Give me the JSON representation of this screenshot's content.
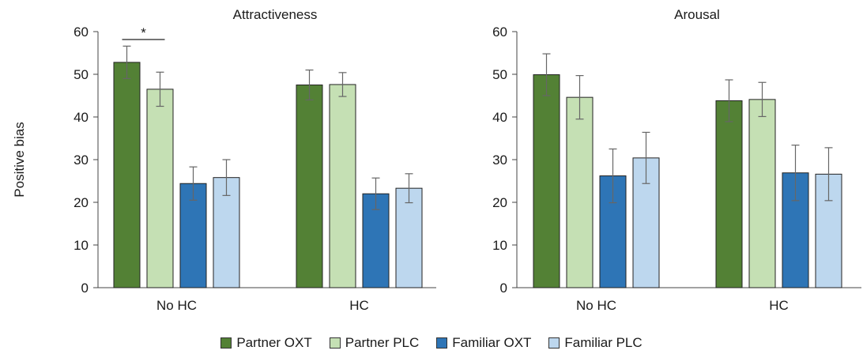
{
  "ylabel": "Positive bias",
  "legend": [
    {
      "name": "Partner OXT",
      "color": "#538135"
    },
    {
      "name": "Partner PLC",
      "color": "#c5e0b4"
    },
    {
      "name": "Familiar OXT",
      "color": "#2e75b6"
    },
    {
      "name": "Familiar PLC",
      "color": "#bdd7ee"
    }
  ],
  "chart_data": [
    {
      "type": "bar",
      "title": "Attractiveness",
      "ylabel": "Positive bias",
      "categories": [
        "No HC",
        "HC"
      ],
      "ylim": [
        0,
        60
      ],
      "yticks": [
        "0",
        "10",
        "20",
        "30",
        "40",
        "50",
        "60"
      ],
      "series": [
        {
          "name": "Partner OXT",
          "color": "#538135",
          "values": [
            52.8,
            47.5
          ],
          "errors": [
            3.8,
            3.5
          ]
        },
        {
          "name": "Partner PLC",
          "color": "#c5e0b4",
          "values": [
            46.5,
            47.6
          ],
          "errors": [
            4.0,
            2.8
          ]
        },
        {
          "name": "Familiar OXT",
          "color": "#2e75b6",
          "values": [
            24.4,
            22.0
          ],
          "errors": [
            3.9,
            3.7
          ]
        },
        {
          "name": "Familiar PLC",
          "color": "#bdd7ee",
          "values": [
            25.8,
            23.3
          ],
          "errors": [
            4.2,
            3.4
          ]
        }
      ],
      "annotations": [
        {
          "text": "*",
          "category": "No HC",
          "between": [
            "Partner OXT",
            "Partner PLC"
          ]
        }
      ]
    },
    {
      "type": "bar",
      "title": "Arousal",
      "categories": [
        "No HC",
        "HC"
      ],
      "ylim": [
        0,
        60
      ],
      "yticks": [
        "0",
        "10",
        "20",
        "30",
        "40",
        "50",
        "60"
      ],
      "series": [
        {
          "name": "Partner OXT",
          "color": "#538135",
          "values": [
            49.9,
            43.8
          ],
          "errors": [
            4.9,
            4.9
          ]
        },
        {
          "name": "Partner PLC",
          "color": "#c5e0b4",
          "values": [
            44.6,
            44.1
          ],
          "errors": [
            5.1,
            4.0
          ]
        },
        {
          "name": "Familiar OXT",
          "color": "#2e75b6",
          "values": [
            26.2,
            26.9
          ],
          "errors": [
            6.3,
            6.5
          ]
        },
        {
          "name": "Familiar PLC",
          "color": "#bdd7ee",
          "values": [
            30.4,
            26.6
          ],
          "errors": [
            6.0,
            6.2
          ]
        }
      ],
      "annotations": []
    }
  ]
}
